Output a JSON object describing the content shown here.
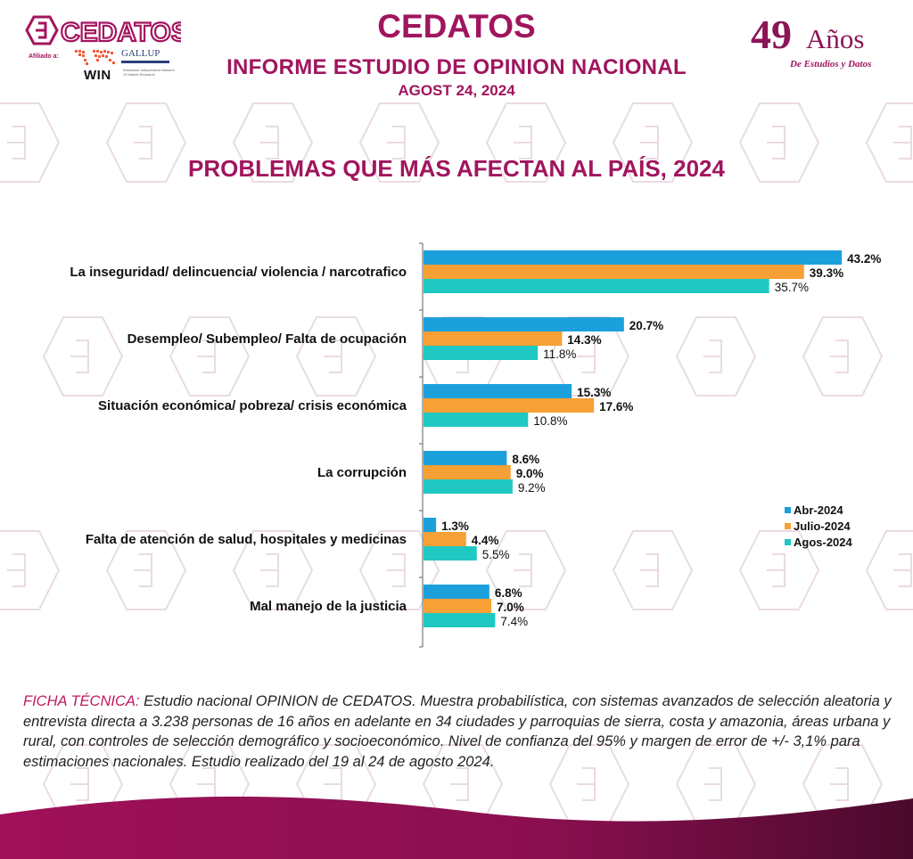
{
  "header": {
    "logo_text": "CEDATOS",
    "affiliation_label": "Afiliado a:",
    "win_logo": "WIN",
    "win_subtitle": "Worldwide Independent Network Of Market Research",
    "gallup_logo": "GALLUP",
    "title": "CEDATOS",
    "subtitle": "INFORME ESTUDIO DE OPINION NACIONAL",
    "date": "AGOST 24, 2024",
    "anniversary_number": "49",
    "anniversary_word": "Años",
    "anniversary_tagline": "De Estudios y Datos"
  },
  "colors": {
    "brand": "#a0155e",
    "abr": "#1ca0dc",
    "julio": "#f7a035",
    "agos": "#1fc8c2"
  },
  "chart_data": {
    "type": "bar",
    "orientation": "horizontal",
    "title": "PROBLEMAS QUE MÁS AFECTAN AL PAÍS, 2024",
    "xlabel": "",
    "ylabel": "",
    "xlim": [
      0,
      45
    ],
    "grid": false,
    "legend_position": "right",
    "categories": [
      "La inseguridad/ delincuencia/ violencia / narcotrafico",
      "Desempleo/ Subempleo/ Falta de ocupación",
      "Situación económica/ pobreza/ crisis económica",
      "La corrupción",
      "Falta de atención de salud, hospitales y medicinas",
      "Mal manejo de la justicia"
    ],
    "series": [
      {
        "name": "Abr-2024",
        "color": "#1ca0dc",
        "values": [
          43.2,
          20.7,
          15.3,
          8.6,
          1.3,
          6.8
        ],
        "labels": [
          "43.2%",
          "20.7%",
          "15.3%",
          "8.6%",
          "1.3%",
          "6.8%"
        ]
      },
      {
        "name": "Julio-2024",
        "color": "#f7a035",
        "values": [
          39.3,
          14.3,
          17.6,
          9.0,
          4.4,
          7.0
        ],
        "labels": [
          "39.3%",
          "14.3%",
          "17.6%",
          "9.0%",
          "4.4%",
          "7.0%"
        ]
      },
      {
        "name": "Agos-2024",
        "color": "#1fc8c2",
        "values": [
          35.7,
          11.8,
          10.8,
          9.2,
          5.5,
          7.4
        ],
        "labels": [
          "35.7%",
          "11.8%",
          "10.8%",
          "9.2%",
          "5.5%",
          "7.4%"
        ]
      }
    ]
  },
  "footer": {
    "ficha_label": "FICHA TÉCNICA:",
    "ficha_text": " Estudio nacional OPINION de CEDATOS. Muestra probabilística, con sistemas avanzados de selección aleatoria y entrevista directa a 3.238 personas de 16 años en adelante en 34 ciudades y parroquias de sierra, costa y amazonia, áreas urbana y rural, con controles de selección demográfico y socioeconómico. Nivel de confianza del 95% y margen de error de +/- 3,1% para estimaciones nacionales. Estudio realizado del 19 al 24 de agosto 2024."
  }
}
